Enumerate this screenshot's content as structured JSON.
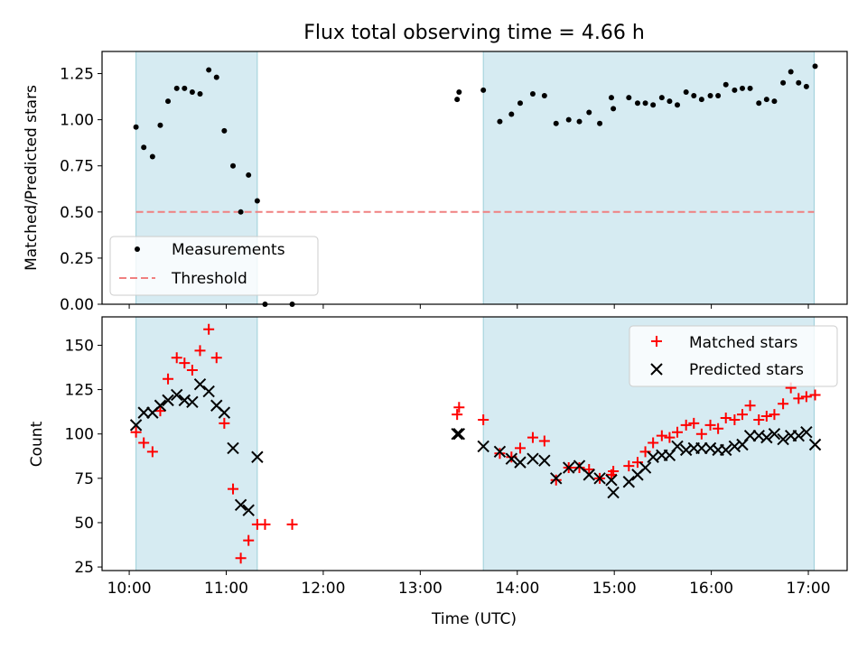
{
  "chart_data": [
    {
      "type": "scatter",
      "title": "Flux total observing time = 4.66 h",
      "xlabel": "",
      "ylabel": "Matched/Predicted stars",
      "xlim": [
        9.72,
        17.4
      ],
      "ylim": [
        0.0,
        1.37
      ],
      "yticks": [
        "0.00",
        "0.25",
        "0.50",
        "0.75",
        "1.00",
        "1.25"
      ],
      "ytick_values": [
        0,
        0.25,
        0.5,
        0.75,
        1.0,
        1.25
      ],
      "grid": false,
      "legend": "lower-left",
      "shaded_intervals": [
        [
          10.07,
          11.32
        ],
        [
          13.65,
          17.06
        ]
      ],
      "threshold": {
        "label": "Threshold",
        "value": 0.5,
        "color": "#f08080"
      },
      "series": [
        {
          "name": "Measurements",
          "color": "#000000",
          "x": [
            10.07,
            10.15,
            10.24,
            10.32,
            10.4,
            10.49,
            10.57,
            10.65,
            10.73,
            10.82,
            10.9,
            10.98,
            11.07,
            11.15,
            11.23,
            11.32,
            11.4,
            11.68,
            13.38,
            13.4,
            13.65,
            13.82,
            13.94,
            14.03,
            14.16,
            14.28,
            14.4,
            14.53,
            14.64,
            14.74,
            14.85,
            14.97,
            14.99,
            15.15,
            15.24,
            15.32,
            15.4,
            15.49,
            15.57,
            15.65,
            15.74,
            15.82,
            15.9,
            15.99,
            16.07,
            16.15,
            16.24,
            16.32,
            16.4,
            16.49,
            16.57,
            16.65,
            16.74,
            16.82,
            16.9,
            16.98,
            17.07
          ],
          "y": [
            0.96,
            0.85,
            0.8,
            0.97,
            1.1,
            1.17,
            1.17,
            1.15,
            1.14,
            1.27,
            1.23,
            0.94,
            0.75,
            0.5,
            0.7,
            0.56,
            0.0,
            0.0,
            1.11,
            1.15,
            1.16,
            0.99,
            1.03,
            1.09,
            1.14,
            1.13,
            0.98,
            1.0,
            0.99,
            1.04,
            0.98,
            1.12,
            1.06,
            1.12,
            1.09,
            1.09,
            1.08,
            1.12,
            1.1,
            1.08,
            1.15,
            1.13,
            1.11,
            1.13,
            1.13,
            1.19,
            1.16,
            1.17,
            1.17,
            1.09,
            1.11,
            1.1,
            1.2,
            1.26,
            1.2,
            1.18,
            1.29
          ]
        }
      ]
    },
    {
      "type": "scatter",
      "title": "",
      "xlabel": "Time (UTC)",
      "ylabel": "Count",
      "xlim": [
        9.72,
        17.4
      ],
      "ylim": [
        23,
        166
      ],
      "xticks": [
        "10:00",
        "11:00",
        "12:00",
        "13:00",
        "14:00",
        "15:00",
        "16:00",
        "17:00"
      ],
      "xtick_values": [
        10,
        11,
        12,
        13,
        14,
        15,
        16,
        17
      ],
      "yticks": [
        "25",
        "50",
        "75",
        "100",
        "125",
        "150"
      ],
      "ytick_values": [
        25,
        50,
        75,
        100,
        125,
        150
      ],
      "grid": false,
      "legend": "upper-right",
      "shaded_intervals": [
        [
          10.07,
          11.32
        ],
        [
          13.65,
          17.06
        ]
      ],
      "series": [
        {
          "name": "Matched stars",
          "marker": "plus",
          "color": "#ff0000",
          "x": [
            10.07,
            10.15,
            10.24,
            10.32,
            10.4,
            10.49,
            10.57,
            10.65,
            10.73,
            10.82,
            10.9,
            10.98,
            11.07,
            11.15,
            11.23,
            11.32,
            11.4,
            11.68,
            13.38,
            13.4,
            13.65,
            13.82,
            13.94,
            14.03,
            14.16,
            14.28,
            14.4,
            14.53,
            14.64,
            14.74,
            14.85,
            14.97,
            14.99,
            15.15,
            15.24,
            15.32,
            15.4,
            15.49,
            15.57,
            15.65,
            15.74,
            15.82,
            15.9,
            15.99,
            16.07,
            16.15,
            16.24,
            16.32,
            16.4,
            16.49,
            16.57,
            16.65,
            16.74,
            16.82,
            16.9,
            16.98,
            17.07
          ],
          "y": [
            101,
            95,
            90,
            113,
            131,
            143,
            140,
            136,
            147,
            159,
            143,
            106,
            69,
            30,
            40,
            49,
            49,
            49,
            111,
            115,
            108,
            89,
            87,
            92,
            98,
            96,
            74,
            81,
            81,
            80,
            75,
            77,
            79,
            82,
            84,
            90,
            95,
            99,
            98,
            101,
            105,
            106,
            100,
            105,
            103,
            109,
            108,
            111,
            116,
            108,
            110,
            111,
            117,
            126,
            120,
            121,
            122
          ]
        },
        {
          "name": "Predicted stars",
          "marker": "x",
          "color": "#000000",
          "x": [
            10.07,
            10.15,
            10.24,
            10.32,
            10.4,
            10.49,
            10.57,
            10.65,
            10.73,
            10.82,
            10.9,
            10.98,
            11.07,
            11.15,
            11.23,
            11.32,
            13.38,
            13.4,
            13.65,
            13.82,
            13.94,
            14.03,
            14.16,
            14.28,
            14.4,
            14.53,
            14.64,
            14.74,
            14.85,
            14.97,
            14.99,
            15.15,
            15.24,
            15.32,
            15.4,
            15.49,
            15.57,
            15.65,
            15.74,
            15.82,
            15.9,
            15.99,
            16.07,
            16.15,
            16.24,
            16.32,
            16.4,
            16.49,
            16.57,
            16.65,
            16.74,
            16.82,
            16.9,
            16.98,
            17.07
          ],
          "y": [
            105,
            112,
            112,
            116,
            119,
            122,
            119,
            118,
            128,
            124,
            116,
            112,
            92,
            60,
            57,
            87,
            100,
            100,
            93,
            90,
            86,
            84,
            86,
            85,
            75,
            81,
            82,
            77,
            75,
            74,
            67,
            73,
            77,
            81,
            87,
            88,
            88,
            93,
            91,
            92,
            92,
            92,
            91,
            91,
            93,
            94,
            99,
            99,
            98,
            100,
            97,
            99,
            99,
            101,
            94
          ]
        }
      ]
    }
  ]
}
